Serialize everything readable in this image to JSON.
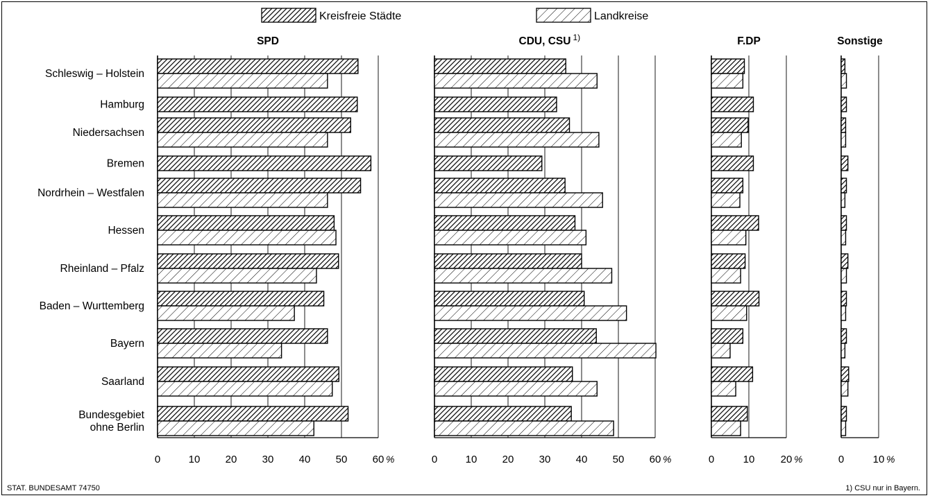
{
  "legend": {
    "kreisfreie": "Kreisfreie Städte",
    "landkreise": "Landkreise"
  },
  "source": "STAT. BUNDESAMT 74750",
  "footnote": "1) CSU nur in Bayern.",
  "chart_data": {
    "type": "bar",
    "orientation": "horizontal",
    "grouping": "clustered",
    "categories": [
      "Schleswig – Holstein",
      "Hamburg",
      "Niedersachsen",
      "Bremen",
      "Nordrhein – Westfalen",
      "Hessen",
      "Rheinland – Pfalz",
      "Baden – Wurttemberg",
      "Bayern",
      "Saarland",
      "Bundesgebiet ohne Berlin"
    ],
    "category_lines": [
      [
        "Schleswig – Holstein"
      ],
      [
        "Hamburg"
      ],
      [
        "Niedersachsen"
      ],
      [
        "Bremen"
      ],
      [
        "Nordrhein – Westfalen"
      ],
      [
        "Hessen"
      ],
      [
        "Rheinland – Pfalz"
      ],
      [
        "Baden – Wurttemberg"
      ],
      [
        "Bayern"
      ],
      [
        "Saarland"
      ],
      [
        "Bundesgebiet",
        "ohne Berlin"
      ]
    ],
    "legend_position": "top",
    "grid": "vertical",
    "panels": [
      {
        "title": "SPD",
        "title_note": "",
        "xlim": [
          0,
          60
        ],
        "ticks": [
          "0",
          "10",
          "20",
          "30",
          "40",
          "50",
          "60"
        ],
        "unit": "%",
        "series": [
          {
            "name": "Kreisfreie Städte",
            "values": [
              54.5,
              54.3,
              52.5,
              58.0,
              55.2,
              48.0,
              49.2,
              45.2,
              46.2,
              49.3,
              51.8
            ]
          },
          {
            "name": "Landkreise",
            "values": [
              46.2,
              null,
              46.2,
              null,
              46.2,
              48.5,
              43.2,
              37.2,
              33.7,
              47.5,
              42.5
            ]
          }
        ]
      },
      {
        "title": "CDU, CSU",
        "title_note": "1)",
        "xlim": [
          0,
          60
        ],
        "ticks": [
          "0",
          "10",
          "20",
          "30",
          "40",
          "50",
          "60"
        ],
        "unit": "%",
        "series": [
          {
            "name": "Kreisfreie Städte",
            "values": [
              35.7,
              33.2,
              36.7,
              29.2,
              35.5,
              38.2,
              40.0,
              40.7,
              44.0,
              37.5,
              37.2
            ]
          },
          {
            "name": "Landkreise",
            "values": [
              44.2,
              null,
              44.7,
              null,
              45.7,
              41.2,
              48.2,
              52.2,
              60.2,
              44.2,
              48.7
            ]
          }
        ]
      },
      {
        "title": "F.DP",
        "title_note": "",
        "xlim": [
          0,
          20
        ],
        "ticks": [
          "0",
          "10",
          "20"
        ],
        "unit": "%",
        "series": [
          {
            "name": "Kreisfreie Städte",
            "values": [
              8.8,
              11.2,
              9.8,
              11.2,
              8.4,
              12.6,
              9.0,
              12.7,
              8.4,
              11.0,
              9.6
            ]
          },
          {
            "name": "Landkreise",
            "values": [
              8.4,
              null,
              8.0,
              null,
              7.6,
              9.2,
              7.8,
              9.4,
              5.0,
              6.5,
              7.8
            ]
          }
        ]
      },
      {
        "title": "Sonstige",
        "title_note": "",
        "xlim": [
          0,
          10
        ],
        "ticks": [
          "0",
          "10"
        ],
        "unit": "%",
        "series": [
          {
            "name": "Kreisfreie Städte",
            "values": [
              1.0,
              1.4,
              1.2,
              1.8,
              1.4,
              1.4,
              1.8,
              1.4,
              1.4,
              2.0,
              1.4
            ]
          },
          {
            "name": "Landkreise",
            "values": [
              1.4,
              null,
              1.2,
              null,
              1.0,
              1.2,
              1.4,
              1.2,
              1.0,
              1.8,
              1.2
            ]
          }
        ]
      }
    ]
  }
}
